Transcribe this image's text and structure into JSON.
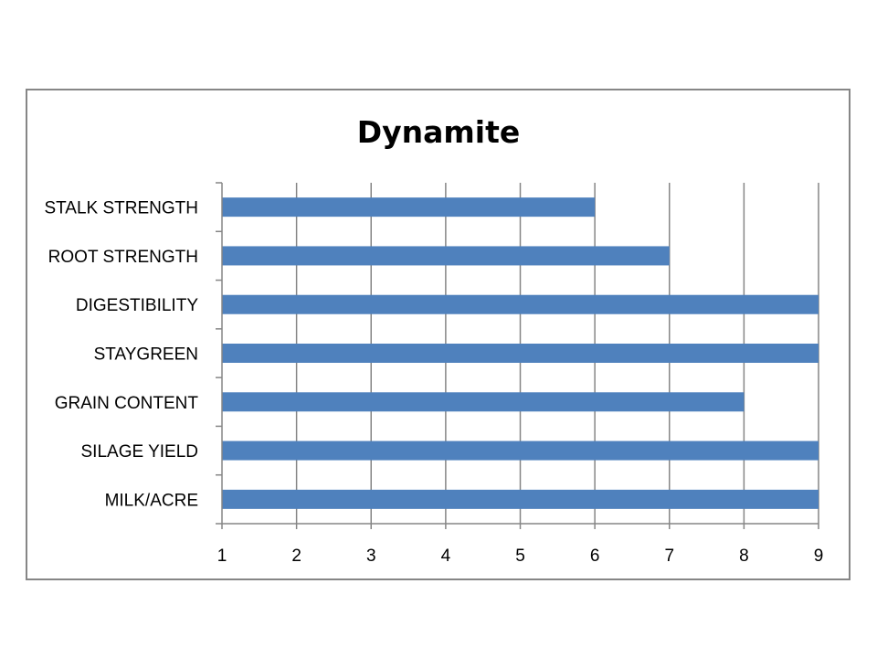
{
  "chart_data": {
    "type": "bar",
    "orientation": "horizontal",
    "title": "Dynamite",
    "xlabel": "",
    "ylabel": "",
    "categories": [
      "STALK STRENGTH",
      "ROOT STRENGTH",
      "DIGESTIBILITY",
      "STAYGREEN",
      "GRAIN CONTENT",
      "SILAGE YIELD",
      "MILK/ACRE"
    ],
    "values": [
      6,
      7,
      9,
      9,
      8,
      9,
      9
    ],
    "xlim": [
      1,
      9
    ],
    "x_ticks": [
      "1",
      "2",
      "3",
      "4",
      "5",
      "6",
      "7",
      "8",
      "9"
    ],
    "grid": true,
    "legend": "none",
    "bar_color": "#4F81BD",
    "grid_color": "#868686"
  }
}
